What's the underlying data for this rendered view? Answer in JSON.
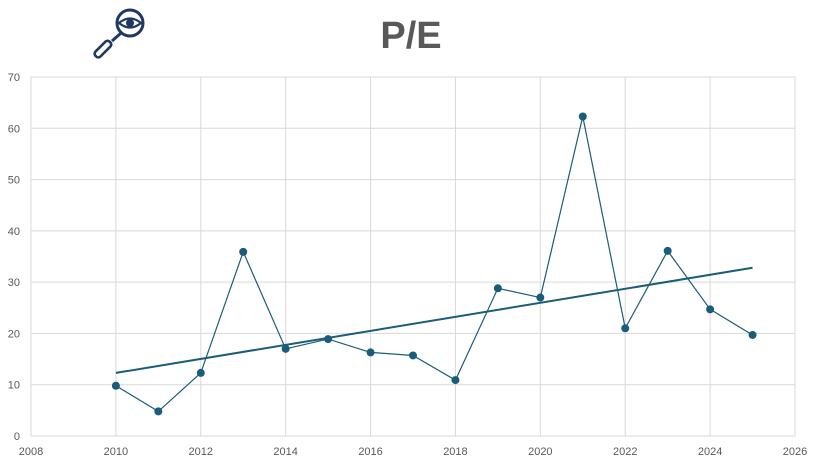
{
  "title": "P/E",
  "logo_icon": "magnifier-eye-icon",
  "colors": {
    "series": "#1a5c7a",
    "marker": "#1a5c7a",
    "grid": "#d9d9d9",
    "text": "#595959",
    "icon": "#1f3864"
  },
  "chart_data": {
    "type": "scatter",
    "title": "P/E",
    "xlabel": "",
    "ylabel": "",
    "xlim": [
      2008,
      2026
    ],
    "ylim": [
      0,
      70
    ],
    "x_ticks": [
      "2008",
      "2010",
      "2012",
      "2014",
      "2016",
      "2018",
      "2020",
      "2022",
      "2024",
      "2026"
    ],
    "y_ticks": [
      "0",
      "10",
      "20",
      "30",
      "40",
      "50",
      "60",
      "70"
    ],
    "grid": true,
    "legend": "none",
    "series": [
      {
        "x": [
          2010,
          2011,
          2012,
          2013,
          2014,
          2015,
          2016,
          2017,
          2018,
          2019,
          2020,
          2021,
          2022,
          2023,
          2024,
          2025
        ],
        "y": [
          9.8,
          4.8,
          12.3,
          35.9,
          17.0,
          18.9,
          16.3,
          15.7,
          10.9,
          28.8,
          27.0,
          62.3,
          21.0,
          36.1,
          24.7,
          19.7
        ],
        "style": "line-with-markers"
      }
    ],
    "trendline": {
      "type": "linear",
      "x": [
        2010,
        2025
      ],
      "y": [
        12.3,
        32.8
      ]
    }
  }
}
